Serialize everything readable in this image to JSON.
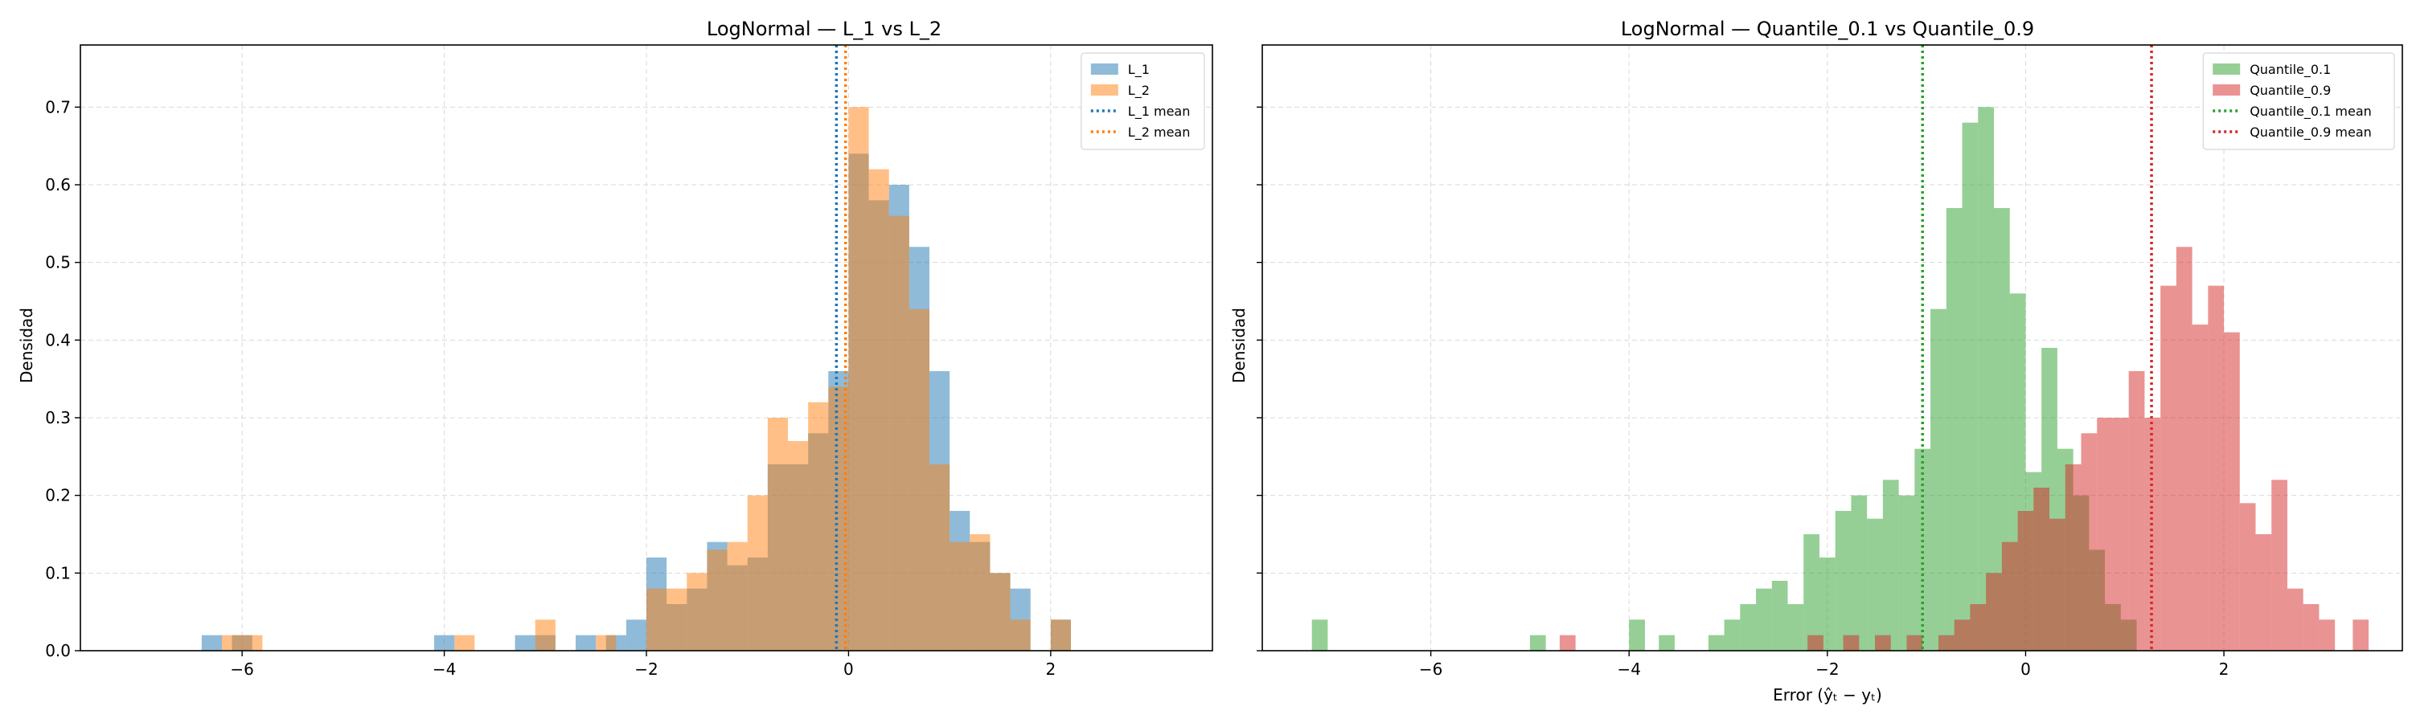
{
  "chart_data": [
    {
      "type": "histogram",
      "title": "LogNormal — L_1 vs L_2",
      "xlabel": "",
      "ylabel": "Densidad",
      "xlim": [
        -7.6,
        3.6
      ],
      "ylim": [
        0,
        0.78
      ],
      "xticks": [
        -6,
        -4,
        -2,
        0,
        2
      ],
      "yticks": [
        0.0,
        0.1,
        0.2,
        0.3,
        0.4,
        0.5,
        0.6,
        0.7
      ],
      "grid": true,
      "legend_position": "top-right",
      "series": [
        {
          "name": "L_1",
          "color": "#1f77b4",
          "opacity": 0.5,
          "bin_width": 0.2,
          "bins": [
            [
              -6.4,
              0.02
            ],
            [
              -6.1,
              0.02
            ],
            [
              -4.1,
              0.02
            ],
            [
              -3.3,
              0.02
            ],
            [
              -3.1,
              0.02
            ],
            [
              -2.7,
              0.02
            ],
            [
              -2.4,
              0.02
            ],
            [
              -2.2,
              0.04
            ],
            [
              -2.0,
              0.12
            ],
            [
              -1.8,
              0.06
            ],
            [
              -1.6,
              0.08
            ],
            [
              -1.4,
              0.14
            ],
            [
              -1.2,
              0.11
            ],
            [
              -1.0,
              0.12
            ],
            [
              -0.8,
              0.24
            ],
            [
              -0.6,
              0.24
            ],
            [
              -0.4,
              0.28
            ],
            [
              -0.2,
              0.36
            ],
            [
              0.0,
              0.64
            ],
            [
              0.2,
              0.58
            ],
            [
              0.4,
              0.6
            ],
            [
              0.6,
              0.52
            ],
            [
              0.8,
              0.36
            ],
            [
              1.0,
              0.18
            ],
            [
              1.2,
              0.14
            ],
            [
              1.4,
              0.1
            ],
            [
              1.6,
              0.08
            ],
            [
              2.0,
              0.04
            ]
          ]
        },
        {
          "name": "L_2",
          "color": "#ff7f0e",
          "opacity": 0.5,
          "bin_width": 0.2,
          "bins": [
            [
              -6.2,
              0.02
            ],
            [
              -6.0,
              0.02
            ],
            [
              -3.9,
              0.02
            ],
            [
              -3.1,
              0.04
            ],
            [
              -2.5,
              0.02
            ],
            [
              -2.0,
              0.08
            ],
            [
              -1.8,
              0.08
            ],
            [
              -1.6,
              0.1
            ],
            [
              -1.4,
              0.13
            ],
            [
              -1.2,
              0.14
            ],
            [
              -1.0,
              0.2
            ],
            [
              -0.8,
              0.3
            ],
            [
              -0.6,
              0.27
            ],
            [
              -0.4,
              0.32
            ],
            [
              -0.2,
              0.34
            ],
            [
              0.0,
              0.7
            ],
            [
              0.2,
              0.62
            ],
            [
              0.4,
              0.56
            ],
            [
              0.6,
              0.44
            ],
            [
              0.8,
              0.24
            ],
            [
              1.0,
              0.14
            ],
            [
              1.2,
              0.15
            ],
            [
              1.4,
              0.1
            ],
            [
              1.6,
              0.04
            ],
            [
              2.0,
              0.04
            ]
          ]
        }
      ],
      "mean_lines": [
        {
          "name": "L_1 mean",
          "x": -0.12,
          "color": "#1f77b4"
        },
        {
          "name": "L_2 mean",
          "x": -0.03,
          "color": "#ff7f0e"
        }
      ]
    },
    {
      "type": "histogram",
      "title": "LogNormal — Quantile_0.1 vs Quantile_0.9",
      "xlabel": "Error (ŷₜ − yₜ)",
      "ylabel": "Densidad",
      "xlim": [
        -7.7,
        3.8
      ],
      "ylim": [
        0,
        0.78
      ],
      "xticks": [
        -6,
        -4,
        -2,
        0,
        2
      ],
      "yticks": [
        0.0,
        0.1,
        0.2,
        0.3,
        0.4,
        0.5,
        0.6,
        0.7
      ],
      "grid": true,
      "legend_position": "top-right",
      "series": [
        {
          "name": "Quantile_0.1",
          "color": "#2ca02c",
          "opacity": 0.5,
          "bin_width": 0.16,
          "bins": [
            [
              -7.2,
              0.04
            ],
            [
              -5.0,
              0.02
            ],
            [
              -4.0,
              0.04
            ],
            [
              -3.7,
              0.02
            ],
            [
              -3.2,
              0.02
            ],
            [
              -3.04,
              0.04
            ],
            [
              -2.88,
              0.06
            ],
            [
              -2.72,
              0.08
            ],
            [
              -2.56,
              0.09
            ],
            [
              -2.4,
              0.06
            ],
            [
              -2.24,
              0.15
            ],
            [
              -2.08,
              0.12
            ],
            [
              -1.92,
              0.18
            ],
            [
              -1.76,
              0.2
            ],
            [
              -1.6,
              0.17
            ],
            [
              -1.44,
              0.22
            ],
            [
              -1.28,
              0.2
            ],
            [
              -1.12,
              0.26
            ],
            [
              -0.96,
              0.44
            ],
            [
              -0.8,
              0.57
            ],
            [
              -0.64,
              0.68
            ],
            [
              -0.48,
              0.7
            ],
            [
              -0.32,
              0.57
            ],
            [
              -0.16,
              0.46
            ],
            [
              0.0,
              0.23
            ],
            [
              0.16,
              0.39
            ],
            [
              0.32,
              0.26
            ],
            [
              0.48,
              0.2
            ],
            [
              0.64,
              0.13
            ],
            [
              0.8,
              0.06
            ],
            [
              0.96,
              0.04
            ]
          ]
        },
        {
          "name": "Quantile_0.9",
          "color": "#d62728",
          "opacity": 0.5,
          "bin_width": 0.16,
          "bins": [
            [
              -4.7,
              0.02
            ],
            [
              -2.2,
              0.02
            ],
            [
              -1.84,
              0.02
            ],
            [
              -1.52,
              0.02
            ],
            [
              -1.2,
              0.02
            ],
            [
              -0.88,
              0.02
            ],
            [
              -0.72,
              0.04
            ],
            [
              -0.56,
              0.06
            ],
            [
              -0.4,
              0.1
            ],
            [
              -0.24,
              0.14
            ],
            [
              -0.08,
              0.18
            ],
            [
              0.08,
              0.21
            ],
            [
              0.24,
              0.17
            ],
            [
              0.4,
              0.24
            ],
            [
              0.56,
              0.28
            ],
            [
              0.72,
              0.3
            ],
            [
              0.88,
              0.3
            ],
            [
              1.04,
              0.36
            ],
            [
              1.2,
              0.3
            ],
            [
              1.36,
              0.47
            ],
            [
              1.52,
              0.52
            ],
            [
              1.68,
              0.42
            ],
            [
              1.84,
              0.47
            ],
            [
              2.0,
              0.41
            ],
            [
              2.16,
              0.19
            ],
            [
              2.32,
              0.15
            ],
            [
              2.48,
              0.22
            ],
            [
              2.64,
              0.08
            ],
            [
              2.8,
              0.06
            ],
            [
              2.96,
              0.04
            ],
            [
              3.3,
              0.04
            ]
          ]
        }
      ],
      "mean_lines": [
        {
          "name": "Quantile_0.1 mean",
          "x": -1.04,
          "color": "#2ca02c"
        },
        {
          "name": "Quantile_0.9 mean",
          "x": 1.27,
          "color": "#d62728"
        }
      ]
    }
  ]
}
